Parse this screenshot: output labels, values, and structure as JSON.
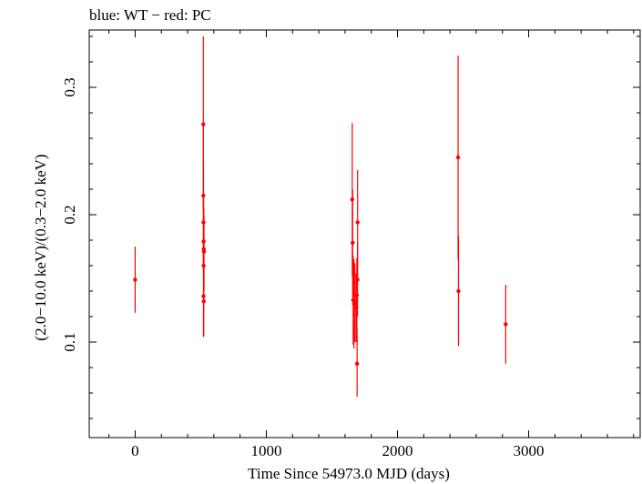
{
  "header": {
    "title": "blue: WT − red: PC"
  },
  "colors": {
    "pc_series": "#ff0000",
    "axes": "#000000",
    "background": "#ffffff"
  },
  "chart_data": {
    "type": "scatter",
    "title": "blue: WT − red: PC",
    "xlabel": "Time Since 54973.0 MJD (days)",
    "ylabel": "(2.0−10.0 keV)/(0.3−2.0 keV)",
    "xlim": [
      -350,
      3850
    ],
    "ylim": [
      0.025,
      0.345
    ],
    "xticks": [
      0,
      1000,
      2000,
      3000
    ],
    "xtick_labels": [
      "0",
      "1000",
      "2000",
      "3000"
    ],
    "yticks": [
      0.1,
      0.2,
      0.3
    ],
    "ytick_labels": [
      "0.1",
      "0.2",
      "0.3"
    ],
    "grid": false,
    "legend": "none",
    "series": [
      {
        "color": "#ff0000",
        "points": [
          {
            "x": 0,
            "y": 0.149,
            "ylo": 0.123,
            "yhi": 0.175
          },
          {
            "x": 520,
            "y": 0.271,
            "ylo": 0.202,
            "yhi": 0.34
          },
          {
            "x": 520,
            "y": 0.215,
            "ylo": 0.16,
            "yhi": 0.27
          },
          {
            "x": 521,
            "y": 0.194,
            "ylo": 0.15,
            "yhi": 0.24
          },
          {
            "x": 522,
            "y": 0.179,
            "ylo": 0.14,
            "yhi": 0.215
          },
          {
            "x": 523,
            "y": 0.173,
            "ylo": 0.14,
            "yhi": 0.205
          },
          {
            "x": 525,
            "y": 0.171,
            "ylo": 0.14,
            "yhi": 0.2
          },
          {
            "x": 522,
            "y": 0.16,
            "ylo": 0.125,
            "yhi": 0.195
          },
          {
            "x": 521,
            "y": 0.136,
            "ylo": 0.104,
            "yhi": 0.168
          },
          {
            "x": 523,
            "y": 0.132,
            "ylo": 0.105,
            "yhi": 0.16
          },
          {
            "x": 1655,
            "y": 0.212,
            "ylo": 0.152,
            "yhi": 0.272
          },
          {
            "x": 1658,
            "y": 0.178,
            "ylo": 0.135,
            "yhi": 0.22
          },
          {
            "x": 1662,
            "y": 0.133,
            "ylo": 0.098,
            "yhi": 0.168
          },
          {
            "x": 1668,
            "y": 0.13,
            "ylo": 0.095,
            "yhi": 0.165
          },
          {
            "x": 1675,
            "y": 0.131,
            "ylo": 0.1,
            "yhi": 0.162
          },
          {
            "x": 1685,
            "y": 0.127,
            "ylo": 0.1,
            "yhi": 0.154
          },
          {
            "x": 1690,
            "y": 0.137,
            "ylo": 0.108,
            "yhi": 0.166
          },
          {
            "x": 1695,
            "y": 0.149,
            "ylo": 0.12,
            "yhi": 0.178
          },
          {
            "x": 1696,
            "y": 0.194,
            "ylo": 0.15,
            "yhi": 0.235
          },
          {
            "x": 1692,
            "y": 0.083,
            "ylo": 0.057,
            "yhi": 0.11
          },
          {
            "x": 2462,
            "y": 0.245,
            "ylo": 0.165,
            "yhi": 0.325
          },
          {
            "x": 2465,
            "y": 0.14,
            "ylo": 0.097,
            "yhi": 0.183
          },
          {
            "x": 2825,
            "y": 0.114,
            "ylo": 0.083,
            "yhi": 0.145
          }
        ]
      }
    ]
  }
}
